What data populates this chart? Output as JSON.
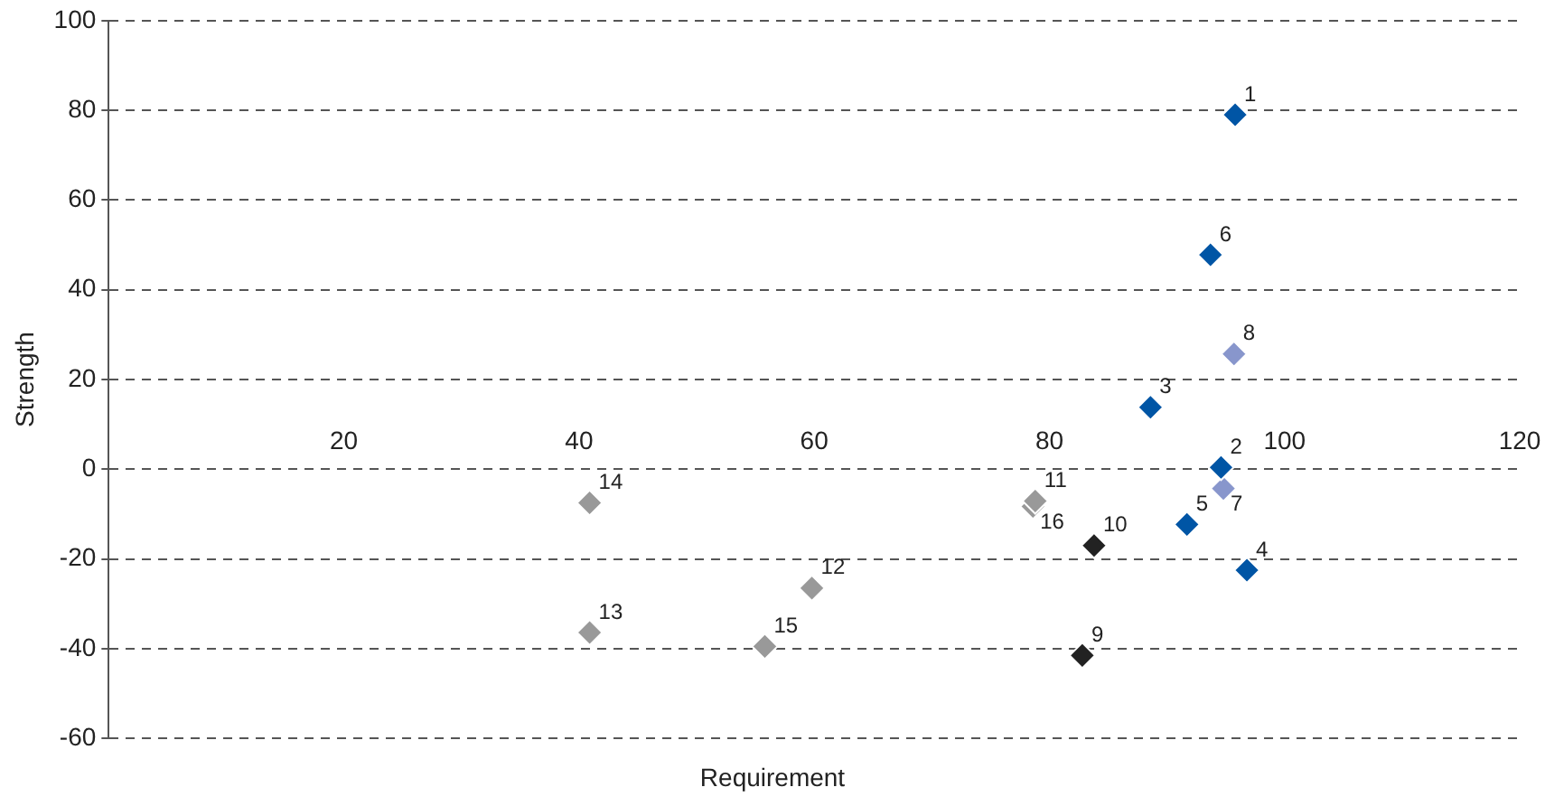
{
  "chart_data": {
    "type": "scatter",
    "xlabel": "Requirement",
    "ylabel": "Strength",
    "xlim": [
      0,
      120
    ],
    "xticks": [
      20,
      40,
      60,
      80,
      100,
      120
    ],
    "ylim": [
      -60,
      100
    ],
    "yticks": [
      -60,
      -40,
      -20,
      0,
      20,
      40,
      60,
      80,
      100
    ],
    "grid": "y",
    "legend": false,
    "marker": "diamond",
    "series": [
      {
        "color": "#0055a5",
        "x": [
          95.8,
          94.6,
          88.6,
          96.8,
          91.7,
          93.7
        ],
        "values": [
          79,
          0.4,
          13.8,
          -22.5,
          -12.3,
          47.8
        ]
      },
      {
        "color": "#8896cc",
        "x": [
          94.8,
          95.7
        ],
        "values": [
          -4.3,
          25.7
        ]
      },
      {
        "color": "#222222",
        "x": [
          82.8,
          83.8
        ],
        "values": [
          -41.5,
          -17
        ]
      },
      {
        "color": "#999999",
        "x": [
          78.6,
          59.8,
          40.9,
          40.9,
          55.8,
          78.8
        ],
        "values": [
          -8.3,
          -26.5,
          -36.4,
          -7.5,
          -39.5,
          -7.1
        ]
      }
    ],
    "annotations": [
      {
        "text": "1",
        "x": 95.8,
        "y": 79
      },
      {
        "text": "2",
        "x": 94.6,
        "y": 0.4
      },
      {
        "text": "3",
        "x": 88.6,
        "y": 13.8
      },
      {
        "text": "4",
        "x": 96.8,
        "y": -22.5
      },
      {
        "text": "5",
        "x": 91.7,
        "y": -12.3
      },
      {
        "text": "6",
        "x": 93.7,
        "y": 47.8
      },
      {
        "text": "7",
        "x": 94.8,
        "y": -4.3
      },
      {
        "text": "8",
        "x": 95.7,
        "y": 25.7
      },
      {
        "text": "9",
        "x": 82.8,
        "y": -41.5
      },
      {
        "text": "10",
        "x": 83.8,
        "y": -17
      },
      {
        "text": "11",
        "x": 78.8,
        "y": -7.1
      },
      {
        "text": "12",
        "x": 59.8,
        "y": -26.5
      },
      {
        "text": "13",
        "x": 40.9,
        "y": -36.4
      },
      {
        "text": "14",
        "x": 40.9,
        "y": -7.5
      },
      {
        "text": "15",
        "x": 55.8,
        "y": -39.5
      },
      {
        "text": "16",
        "x": 78.6,
        "y": -8.3
      }
    ]
  }
}
